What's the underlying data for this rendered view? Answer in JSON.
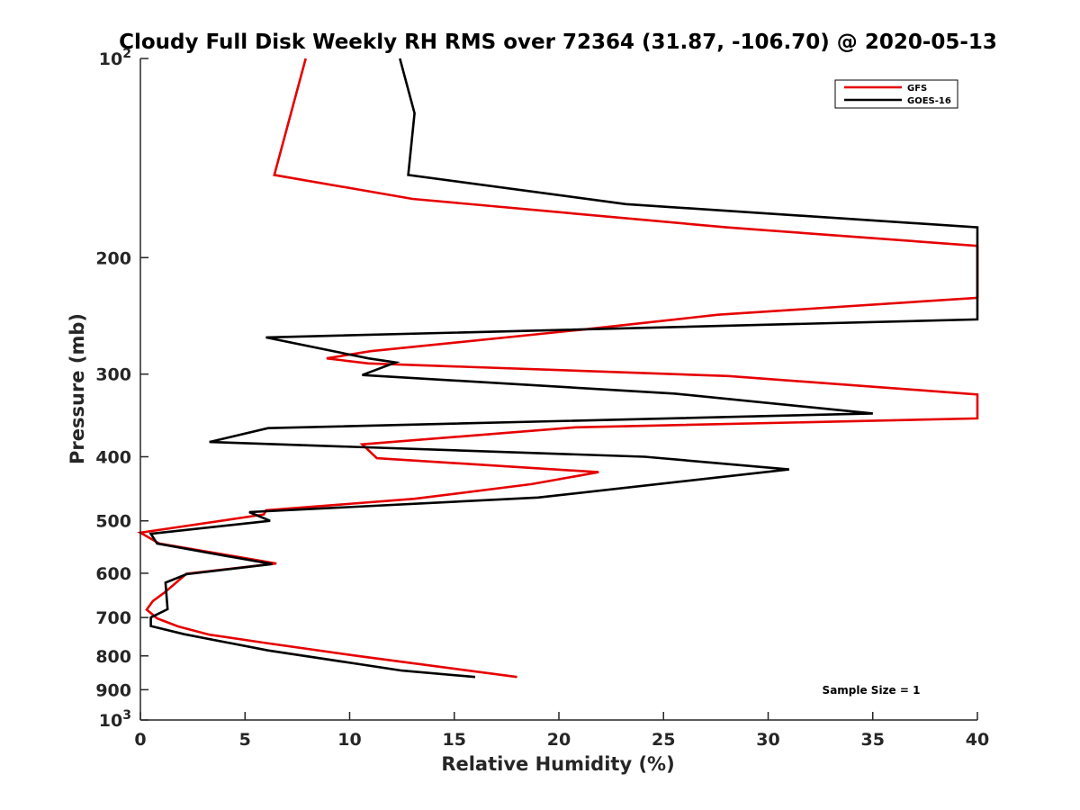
{
  "chart_data": {
    "type": "line",
    "title": "Cloudy Full Disk Weekly RH RMS over 72364 (31.87, -106.70) @ 2020-05-13",
    "xlabel": "Relative Humidity (%)",
    "ylabel": "Pressure (mb)",
    "xlim": [
      0,
      40
    ],
    "ylim": [
      100,
      1000
    ],
    "yscale": "log",
    "y_reversed": true,
    "grid": false,
    "legend_position": "top-right",
    "x_ticks": [
      0,
      5,
      10,
      15,
      20,
      25,
      30,
      35,
      40
    ],
    "y_ticks": [
      {
        "value": 100,
        "label": "10",
        "sup": "2"
      },
      {
        "value": 200,
        "label": "200",
        "sup": ""
      },
      {
        "value": 300,
        "label": "300",
        "sup": ""
      },
      {
        "value": 400,
        "label": "400",
        "sup": ""
      },
      {
        "value": 500,
        "label": "500",
        "sup": ""
      },
      {
        "value": 600,
        "label": "600",
        "sup": ""
      },
      {
        "value": 700,
        "label": "700",
        "sup": ""
      },
      {
        "value": 800,
        "label": "800",
        "sup": ""
      },
      {
        "value": 900,
        "label": "900",
        "sup": ""
      },
      {
        "value": 1000,
        "label": "10",
        "sup": "3"
      }
    ],
    "annotation": "Sample Size = 1",
    "series": [
      {
        "name": "GFS",
        "color": "#e60000",
        "points": [
          [
            7.9,
            100
          ],
          [
            6.4,
            150
          ],
          [
            13.0,
            163
          ],
          [
            28.0,
            180
          ],
          [
            40,
            192
          ],
          [
            40,
            230
          ],
          [
            27.6,
            244
          ],
          [
            21.1,
            257
          ],
          [
            11.0,
            277
          ],
          [
            8.9,
            284
          ],
          [
            10.9,
            289
          ],
          [
            28.1,
            302
          ],
          [
            40,
            322
          ],
          [
            40,
            350
          ],
          [
            20.8,
            361
          ],
          [
            10.6,
            383
          ],
          [
            11.3,
            402
          ],
          [
            21.9,
            422
          ],
          [
            18.7,
            440
          ],
          [
            13.1,
            463
          ],
          [
            6.0,
            482
          ],
          [
            5.9,
            489
          ],
          [
            0.0,
            521
          ],
          [
            0.9,
            541
          ],
          [
            4.0,
            562
          ],
          [
            6.5,
            580
          ],
          [
            2.2,
            601
          ],
          [
            1.2,
            640
          ],
          [
            0.6,
            661
          ],
          [
            0.3,
            681
          ],
          [
            0.8,
            702
          ],
          [
            1.8,
            722
          ],
          [
            3.3,
            743
          ],
          [
            5.9,
            764
          ],
          [
            10.5,
            801
          ],
          [
            18.0,
            861
          ]
        ]
      },
      {
        "name": "GOES-16",
        "color": "#000000",
        "points": [
          [
            12.4,
            100
          ],
          [
            13.1,
            121
          ],
          [
            12.8,
            150
          ],
          [
            23.2,
            166
          ],
          [
            40,
            180
          ],
          [
            40,
            248
          ],
          [
            6.0,
            264
          ],
          [
            10.9,
            284
          ],
          [
            12.2,
            288
          ],
          [
            10.6,
            301
          ],
          [
            25.5,
            321
          ],
          [
            35.0,
            344
          ],
          [
            6.1,
            362
          ],
          [
            3.3,
            380
          ],
          [
            24.1,
            400
          ],
          [
            31.0,
            418
          ],
          [
            19.0,
            461
          ],
          [
            5.2,
            485
          ],
          [
            6.2,
            500
          ],
          [
            0.5,
            523
          ],
          [
            0.8,
            541
          ],
          [
            3.7,
            562
          ],
          [
            6.3,
            581
          ],
          [
            2.2,
            602
          ],
          [
            1.2,
            620
          ],
          [
            1.3,
            680
          ],
          [
            0.5,
            700
          ],
          [
            0.5,
            721
          ],
          [
            2.1,
            742
          ],
          [
            6.1,
            785
          ],
          [
            12.5,
            842
          ],
          [
            16.0,
            861
          ]
        ]
      }
    ]
  }
}
